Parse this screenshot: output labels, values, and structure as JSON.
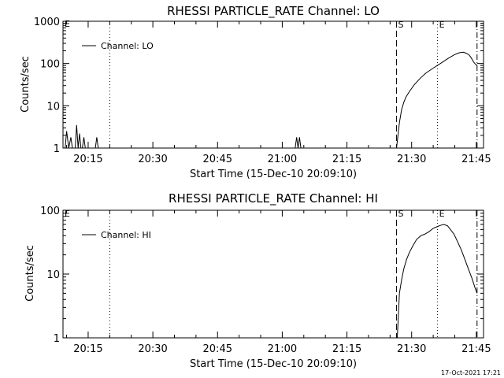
{
  "timestamp": "17-Oct-2021 17:21",
  "colors": {
    "background": "#ffffff",
    "foreground": "#000000"
  },
  "chart_data": [
    {
      "type": "line",
      "title": "RHESSI PARTICLE_RATE Channel: LO",
      "xlabel": "Start Time (15-Dec-10 20:09:10)",
      "ylabel": "Counts/sec",
      "yscale": "log",
      "xlim": [
        "20:09:10",
        "21:46:40"
      ],
      "ylim": [
        1,
        1000
      ],
      "xticks": [
        "20:15",
        "20:30",
        "20:45",
        "21:00",
        "21:15",
        "21:30",
        "21:45"
      ],
      "yticks": [
        {
          "value": 1,
          "label": "1"
        },
        {
          "value": 10,
          "label": "10"
        },
        {
          "value": 100,
          "label": "100"
        },
        {
          "value": 1000,
          "label": "1000"
        }
      ],
      "legend": {
        "position": "top-left",
        "entries": [
          "Channel: LO"
        ]
      },
      "markers": [
        {
          "time": "20:20:00",
          "style": "dotted",
          "label": ""
        },
        {
          "time": "21:26:30",
          "style": "dashed",
          "label": "S"
        },
        {
          "time": "21:36:00",
          "style": "dotted",
          "label": "E"
        },
        {
          "time": "21:45:10",
          "style": "dashdot",
          "label": ""
        }
      ],
      "corner_label": "E",
      "series": [
        {
          "name": "Channel: LO",
          "x": [
            "20:09:10",
            "20:09:40",
            "20:10:00",
            "20:10:30",
            "20:11:00",
            "20:11:20",
            "20:11:40",
            "20:12:00",
            "20:12:20",
            "20:12:40",
            "20:13:00",
            "20:13:20",
            "20:13:40",
            "20:14:00",
            "20:14:20",
            "20:14:40",
            "20:15:00",
            "20:16:20",
            "20:16:40",
            "20:17:00",
            "20:17:20",
            "21:03:00",
            "21:03:20",
            "21:03:40",
            "21:04:00",
            "21:04:20",
            "21:04:40",
            "21:05:00",
            "21:26:30",
            "21:26:50",
            "21:27:10",
            "21:27:40",
            "21:28:10",
            "21:28:40",
            "21:29:30",
            "21:30:40",
            "21:32:00",
            "21:33:20",
            "21:35:00",
            "21:36:40",
            "21:38:20",
            "21:39:50",
            "21:41:00",
            "21:42:00",
            "21:42:40",
            "21:43:20",
            "21:43:50",
            "21:44:20",
            "21:44:50",
            "21:45:10"
          ],
          "y": [
            1,
            1,
            2.5,
            1,
            1.8,
            1,
            1,
            1,
            3.5,
            1,
            2.2,
            1,
            1,
            1.8,
            1,
            1,
            1,
            1,
            1,
            1.8,
            1,
            1,
            1.8,
            1,
            1.8,
            1,
            1,
            1,
            1,
            2,
            4,
            8,
            12,
            16,
            22,
            32,
            45,
            60,
            78,
            100,
            130,
            160,
            180,
            185,
            175,
            160,
            135,
            110,
            95,
            90
          ]
        }
      ]
    },
    {
      "type": "line",
      "title": "RHESSI PARTICLE_RATE Channel: HI",
      "xlabel": "Start Time (15-Dec-10 20:09:10)",
      "ylabel": "Counts/sec",
      "yscale": "log",
      "xlim": [
        "20:09:10",
        "21:46:40"
      ],
      "ylim": [
        1,
        100
      ],
      "xticks": [
        "20:15",
        "20:30",
        "20:45",
        "21:00",
        "21:15",
        "21:30",
        "21:45"
      ],
      "yticks": [
        {
          "value": 1,
          "label": "1"
        },
        {
          "value": 10,
          "label": "10"
        },
        {
          "value": 100,
          "label": "100"
        }
      ],
      "legend": {
        "position": "top-left",
        "entries": [
          "Channel: HI"
        ]
      },
      "markers": [
        {
          "time": "20:20:00",
          "style": "dotted",
          "label": ""
        },
        {
          "time": "21:26:30",
          "style": "dashed",
          "label": "S"
        },
        {
          "time": "21:36:00",
          "style": "dotted",
          "label": "E"
        },
        {
          "time": "21:45:10",
          "style": "dashdot",
          "label": ""
        }
      ],
      "corner_label": "E",
      "series": [
        {
          "name": "Channel: HI",
          "x": [
            "21:26:40",
            "21:27:10",
            "21:27:40",
            "21:28:10",
            "21:28:50",
            "21:29:30",
            "21:30:20",
            "21:31:10",
            "21:32:10",
            "21:33:00",
            "21:34:00",
            "21:35:00",
            "21:35:50",
            "21:36:40",
            "21:37:30",
            "21:38:20",
            "21:39:00",
            "21:39:50",
            "21:40:40",
            "21:41:30",
            "21:42:20",
            "21:43:10",
            "21:44:00",
            "21:44:40",
            "21:45:10"
          ],
          "y": [
            1,
            5,
            8,
            12,
            17,
            22,
            28,
            35,
            40,
            42,
            46,
            52,
            55,
            58,
            60,
            57,
            50,
            42,
            32,
            24,
            17,
            12,
            8.5,
            6.2,
            5
          ]
        }
      ]
    }
  ]
}
